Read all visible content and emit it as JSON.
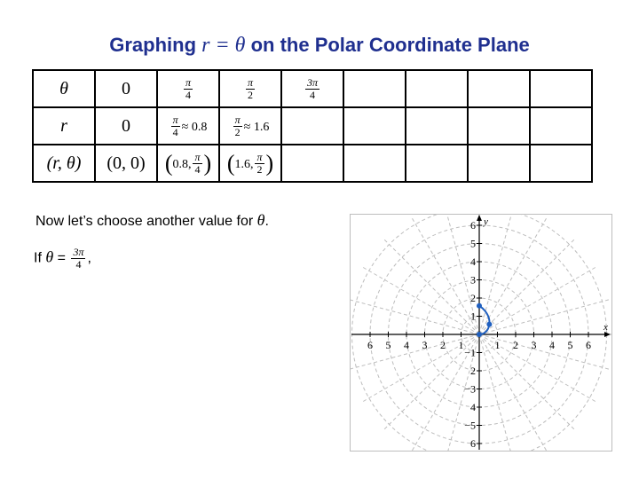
{
  "title": {
    "prefix": "Graphing",
    "equation": "r = θ",
    "suffix": "on the Polar Coordinate Plane"
  },
  "table": {
    "theta_label": "θ",
    "r_label": "r",
    "point_label": "(r, θ)",
    "col1": {
      "theta": "0",
      "r": "0",
      "point": "(0, 0)"
    },
    "col2": {
      "theta_num": "π",
      "theta_den": "4",
      "r_num": "π",
      "r_den": "4",
      "r_approx": "≈ 0.8",
      "pt_r": "0.8,",
      "pt_num": "π",
      "pt_den": "4"
    },
    "col3": {
      "theta_num": "π",
      "theta_den": "2",
      "r_num": "π",
      "r_den": "2",
      "r_approx": "≈ 1.6",
      "pt_r": "1.6,",
      "pt_num": "π",
      "pt_den": "2"
    },
    "col4": {
      "theta_num": "3π",
      "theta_den": "4"
    }
  },
  "prompt": {
    "text": "Now let’s choose another value for",
    "theta": "θ",
    "end": "."
  },
  "if_line": {
    "if": "If",
    "theta": "θ",
    "eq": "=",
    "num": "3π",
    "den": "4",
    "comma": ","
  },
  "graph": {
    "x_label": "x",
    "y_label": "y",
    "x_tick_labels": [
      "6",
      "5",
      "4",
      "3",
      "2",
      "1",
      "1",
      "2",
      "3",
      "4",
      "5",
      "6"
    ],
    "y_tick_labels": [
      "6",
      "5",
      "4",
      "3",
      "2",
      "1",
      "−1",
      "2",
      "−3",
      "4",
      "−5",
      "6"
    ],
    "radii": [
      1,
      2,
      3,
      4,
      5,
      6
    ],
    "spoke_angle_step_deg": 15,
    "points": [
      {
        "r": 0,
        "theta_deg": 0
      },
      {
        "r": 0.785,
        "theta_deg": 45
      },
      {
        "r": 1.571,
        "theta_deg": 90
      }
    ],
    "curve_color": "#1f5fbf",
    "grid_color": "#bdbdbd"
  }
}
